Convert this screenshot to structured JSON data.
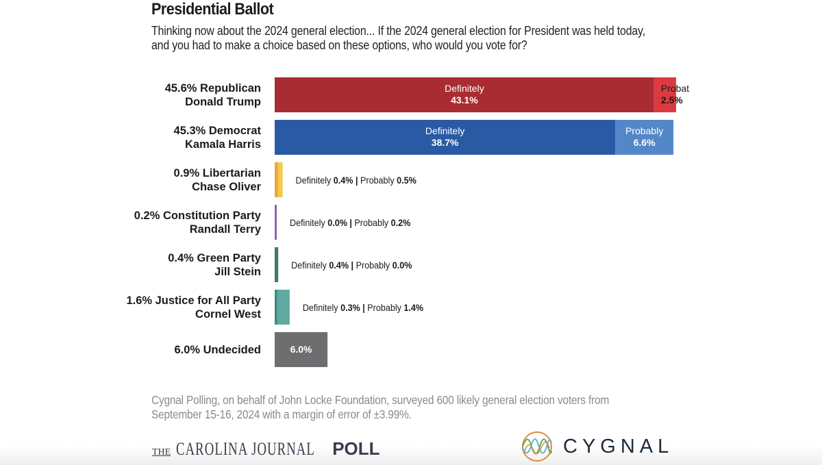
{
  "header": {
    "title": "Presidential Ballot",
    "question_line1": "Thinking now about the 2024 general election... If the 2024 general election for President was held today,",
    "question_line2": "and you had to make a choice based on these options, who would you vote for?"
  },
  "chart_data": {
    "type": "bar",
    "orientation": "horizontal",
    "stacked": true,
    "title": "Presidential Ballot",
    "subtitle": "Thinking now about the 2024 general election... If the 2024 general election for President was held today, and you had to make a choice based on these options, who would you vote for?",
    "xlabel": "",
    "ylabel": "",
    "grid": false,
    "legend": "none",
    "unit": "%",
    "rows": [
      {
        "line1": "45.6% Republican",
        "line2": "Donald Trump",
        "total": 45.6,
        "definitely": 43.1,
        "probably": 2.5,
        "colors": {
          "definitely": "#a82c31",
          "probably": "#dc3a3f"
        },
        "label_mode": "inside",
        "def_text": "Definitely",
        "def_value": "43.1%",
        "prob_text": "Probat",
        "prob_value": "2.5%",
        "prob_text_dark": true
      },
      {
        "line1": "45.3% Democrat",
        "line2": "Kamala Harris",
        "total": 45.3,
        "definitely": 38.7,
        "probably": 6.6,
        "colors": {
          "definitely": "#2a5aa3",
          "probably": "#5387c8"
        },
        "label_mode": "inside",
        "def_text": "Definitely",
        "def_value": "38.7%",
        "prob_text": "Probably",
        "prob_value": "6.6%",
        "prob_text_dark": false
      },
      {
        "line1": "0.9% Libertarian",
        "line2": "Chase Oliver",
        "total": 0.9,
        "definitely": 0.4,
        "probably": 0.5,
        "colors": {
          "definitely": "#e8a842",
          "probably": "#f7c944"
        },
        "label_mode": "side",
        "def_text": "Definitely ",
        "def_value": "0.4%",
        "sep": " | ",
        "prob_text": "Probably ",
        "prob_value": "0.5%"
      },
      {
        "line1": "0.2% Constitution Party",
        "line2": "Randall Terry",
        "total": 0.2,
        "definitely": 0.0,
        "probably": 0.2,
        "colors": {
          "definitely": "#7a559b",
          "probably": "#8b64ad"
        },
        "label_mode": "side",
        "def_text": "Definitely ",
        "def_value": "0.0%",
        "sep": " | ",
        "prob_text": "Probably ",
        "prob_value": "0.2%"
      },
      {
        "line1": "0.4% Green Party",
        "line2": "Jill Stein",
        "total": 0.4,
        "definitely": 0.4,
        "probably": 0.0,
        "colors": {
          "definitely": "#3e7a64",
          "probably": "#5a9a82"
        },
        "label_mode": "side",
        "def_text": "Definitely ",
        "def_value": "0.4%",
        "sep": " | ",
        "prob_text": "Probably ",
        "prob_value": "0.0%"
      },
      {
        "line1": "1.6% Justice for All Party",
        "line2": "Cornel West",
        "total": 1.6,
        "definitely": 0.3,
        "probably": 1.4,
        "colors": {
          "definitely": "#3d8a84",
          "probably": "#5fa9a1"
        },
        "label_mode": "side",
        "def_text": "Definitely ",
        "def_value": "0.3%",
        "sep": " | ",
        "prob_text": "Probably ",
        "prob_value": "1.4%"
      },
      {
        "line1": "6.0% Undecided",
        "line2": "",
        "total": 6.0,
        "definitely": 6.0,
        "probably": 0.0,
        "colors": {
          "definitely": "#6e6e70",
          "probably": "#6e6e70"
        },
        "label_mode": "single",
        "def_value": "6.0%"
      }
    ],
    "xlim": [
      0,
      50
    ]
  },
  "footnote": {
    "line1": "Cygnal Polling, on behalf of John Locke Foundation, surveyed 600 likely general election voters from",
    "line2": "September 15-16, 2024 with a margin of error of ±3.99%."
  },
  "logos": {
    "carolina_journal": {
      "the": "THE",
      "name": "CAROLINA JOURNAL",
      "poll": "POLL"
    },
    "cygnal": {
      "name": "CYGNAL",
      "icon": "sine-wave-circle-icon",
      "colors": [
        "#e08a3c",
        "#5aaa52",
        "#5ab7d8"
      ]
    }
  }
}
